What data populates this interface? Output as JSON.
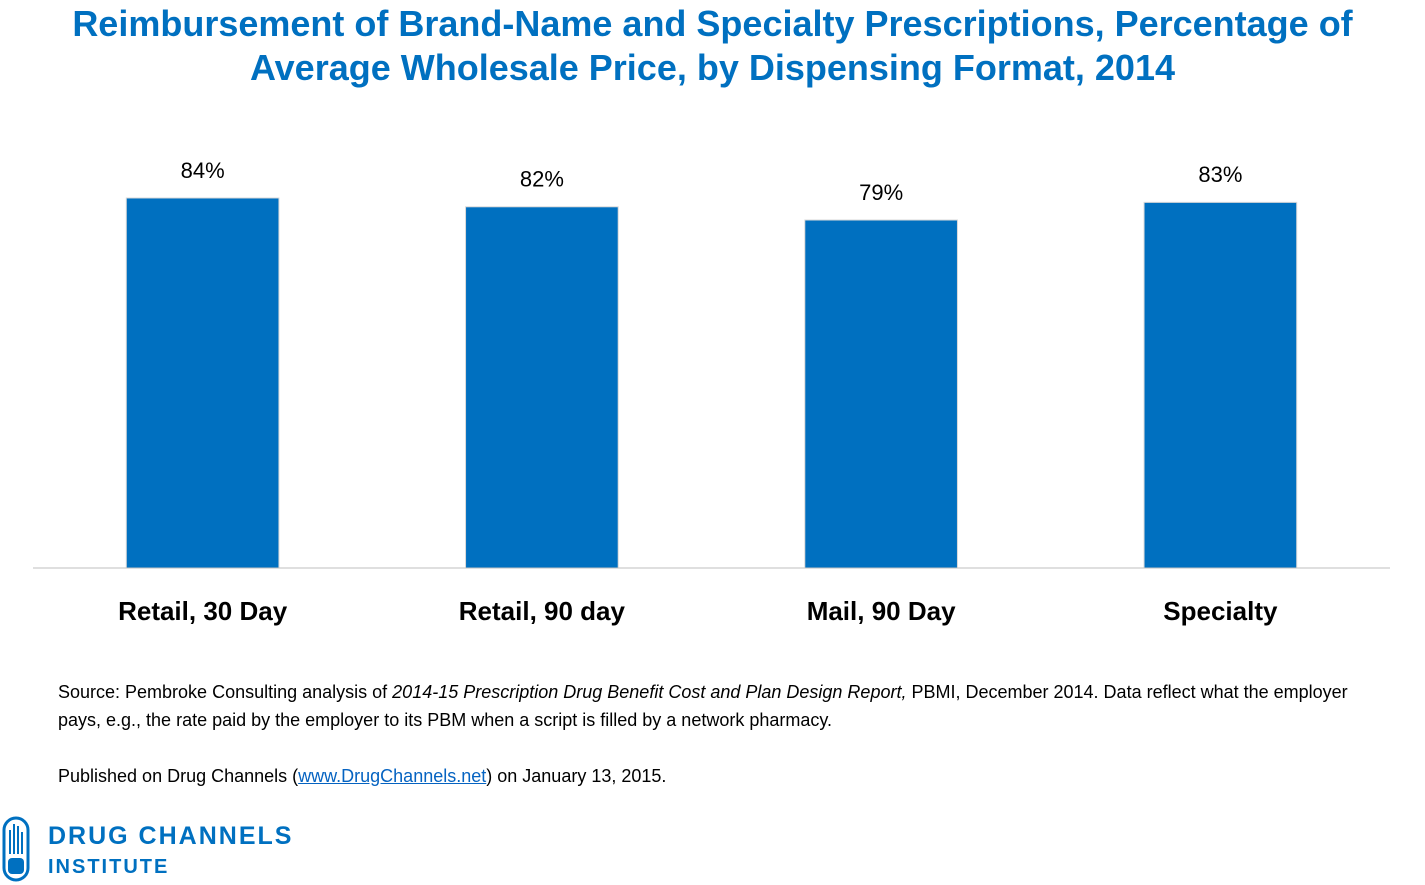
{
  "chart_data": {
    "type": "bar",
    "title": "Reimbursement of Brand-Name and Specialty Prescriptions, Percentage of Average Wholesale Price, by Dispensing Format, 2014",
    "categories": [
      "Retail, 30 Day",
      "Retail, 90 day",
      "Mail, 90 Day",
      "Specialty"
    ],
    "values": [
      84,
      82,
      79,
      83
    ],
    "value_labels": [
      "84%",
      "82%",
      "79%",
      "83%"
    ],
    "color": "#0070c0",
    "ylim": [
      0,
      100
    ]
  },
  "footnote": {
    "source_prefix": "Source: Pembroke Consulting analysis of ",
    "source_report": "2014-15 Prescription Drug Benefit Cost and Plan Design Report,",
    "source_suffix": " PBMI, December 2014. Data reflect what the employer pays, e.g., the rate paid by the employer to its PBM when a script is filled by a network pharmacy.",
    "published_prefix": "Published on Drug Channels (",
    "published_link": "www.DrugChannels.net",
    "published_suffix": ") on January 13, 2015."
  },
  "logo": {
    "line1": "DRUG CHANNELS",
    "line2": "INSTITUTE"
  }
}
